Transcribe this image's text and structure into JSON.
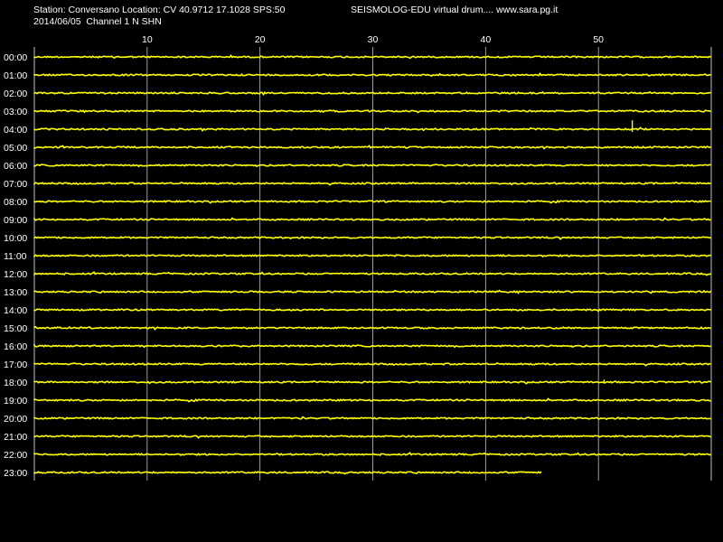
{
  "header": {
    "station_line": "Station: Conversano Location: CV 40.9712 17.1028 SPS:50",
    "brand_line": "SEISMOLOG-EDU virtual drum.... www.sara.pg.it",
    "date_line": "2014/06/05  Channel 1 N SHN"
  },
  "chart_data": {
    "type": "line",
    "xlim": [
      0,
      60
    ],
    "x_ticks": [
      10,
      20,
      30,
      40,
      50
    ],
    "x_tick_labels": [
      "10",
      "20",
      "30",
      "40",
      "50"
    ],
    "rows": [
      "00:00",
      "01:00",
      "02:00",
      "03:00",
      "04:00",
      "05:00",
      "06:00",
      "07:00",
      "08:00",
      "09:00",
      "10:00",
      "11:00",
      "12:00",
      "13:00",
      "14:00",
      "15:00",
      "16:00",
      "17:00",
      "18:00",
      "19:00",
      "20:00",
      "21:00",
      "22:00",
      "23:00"
    ],
    "last_row_end_minute": 45,
    "events": [
      {
        "row": "04:00",
        "minute": 53.0,
        "amplitude": 0.7
      },
      {
        "row": "18:00",
        "minute": 50.5,
        "amplitude": 0.2
      }
    ],
    "trace_color": "#ffff00",
    "grid_color": "#c0c0c0",
    "grid": true
  }
}
